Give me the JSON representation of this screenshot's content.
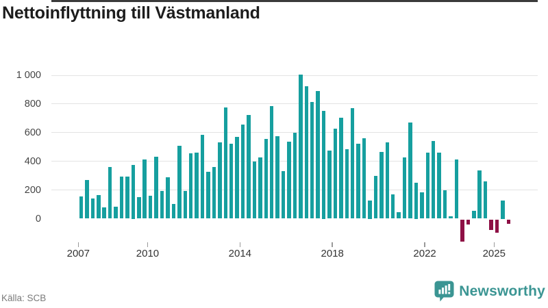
{
  "title": "Nettoinflyttning till Västmanland",
  "source": "Källa: SCB",
  "brand": {
    "name": "Newsworthy"
  },
  "colors": {
    "positive_bar": "#169f9f",
    "negative_bar": "#8e1045",
    "axis_line": "#3b3b3b",
    "gridline": "#e3e3e3",
    "brand_teal": "#3b9593",
    "title_text": "#1c1c1c",
    "tick_text": "#333333",
    "source_text": "#7a7a7a"
  },
  "chart_data": {
    "type": "bar",
    "title": "Nettoinflyttning till Västmanland",
    "xlabel": "",
    "ylabel": "",
    "x_unit": "quarter",
    "start_year": 2007,
    "start_quarter": 1,
    "end_year": 2025,
    "end_quarter": 3,
    "values": [
      155,
      270,
      140,
      165,
      80,
      360,
      85,
      295,
      295,
      375,
      150,
      415,
      160,
      430,
      195,
      290,
      105,
      510,
      195,
      455,
      460,
      585,
      325,
      360,
      530,
      775,
      525,
      570,
      655,
      725,
      400,
      425,
      555,
      785,
      575,
      330,
      535,
      600,
      1005,
      925,
      815,
      890,
      750,
      475,
      630,
      705,
      485,
      770,
      525,
      560,
      125,
      300,
      465,
      530,
      170,
      45,
      425,
      670,
      250,
      185,
      460,
      540,
      460,
      200,
      15,
      415,
      -155,
      -35,
      55,
      335,
      260,
      -75,
      -95,
      125,
      -30
    ],
    "yticks": [
      0,
      200,
      400,
      600,
      800,
      1000
    ],
    "ytick_labels": [
      "0",
      "200",
      "400",
      "600",
      "800",
      "1 000"
    ],
    "xtick_years": [
      2007,
      2010,
      2014,
      2018,
      2022,
      2025
    ],
    "xtick_labels": [
      "2007",
      "2010",
      "2014",
      "2018",
      "2022",
      "2025"
    ],
    "ylim": [
      -200,
      1050
    ],
    "grid": true,
    "legend": false
  }
}
